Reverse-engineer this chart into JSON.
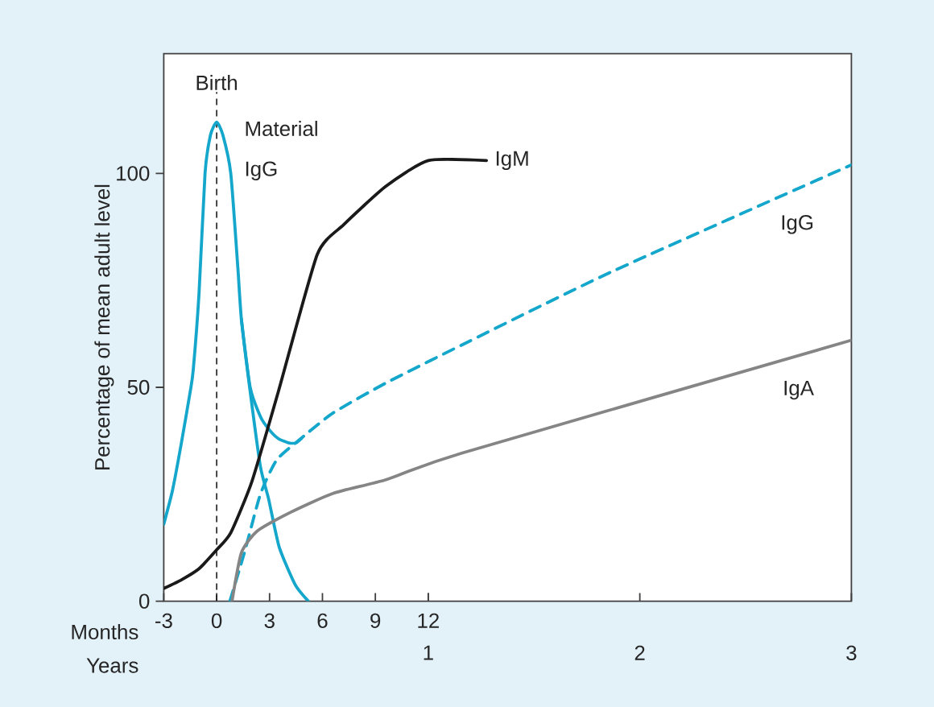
{
  "chart_data": {
    "type": "line",
    "ylabel": "Percentage of mean adult level",
    "xlabel": "Months",
    "x2label": "Years",
    "xlim": [
      -3,
      36
    ],
    "xticks": [
      -3,
      0,
      3,
      6,
      9,
      12
    ],
    "x2lim": [
      -0.25,
      3
    ],
    "x2ticks": [
      1,
      2,
      3
    ],
    "ylim": [
      0,
      128
    ],
    "yticks": [
      0,
      50,
      100
    ],
    "ref_lines": [
      {
        "axis": "x",
        "value": 0,
        "label": "Birth",
        "line_style": "dashed",
        "color": "#1a1a1a"
      }
    ],
    "series": [
      {
        "name": "Material IgG",
        "color": "#14a7cb",
        "line_style": "solid",
        "x": [
          -3,
          -2.5,
          -2,
          -1.5,
          -1.33,
          -1,
          -0.66,
          -0.35,
          0,
          0.35,
          0.8,
          1.2,
          1.4,
          1.87,
          2.48,
          2.94,
          3.55,
          4.46,
          5.2
        ],
        "values": [
          18,
          26,
          37,
          49,
          54,
          72,
          100,
          109,
          112,
          109,
          100,
          78,
          66,
          50,
          31.5,
          24,
          12.6,
          3.8,
          0
        ]
      },
      {
        "color": "#14a7cb",
        "line_style": "solid",
        "x": [
          1.4,
          1.9,
          2.5,
          3,
          3.5,
          4.1,
          4.5,
          4.8
        ],
        "values": [
          66,
          50,
          43,
          40,
          38,
          37,
          37,
          38
        ]
      },
      {
        "name": "IgM",
        "color": "#1a1a1a",
        "line_style": "solid",
        "x": [
          -3,
          -2,
          -1,
          0,
          0.8,
          2,
          3.5,
          5.7,
          7.2,
          9.6,
          12,
          15.3
        ],
        "values": [
          3,
          5,
          7.6,
          12,
          16,
          28,
          49,
          81,
          88,
          97,
          103,
          103
        ]
      },
      {
        "name": "IgG",
        "color": "#14a7cb",
        "line_style": "dashed",
        "x": [
          0.75,
          1.57,
          2.48,
          3.4,
          4.77,
          6.6,
          9.6,
          14.2,
          22.4,
          36
        ],
        "values": [
          0,
          11.3,
          25,
          33,
          38,
          44,
          51,
          60.5,
          77,
          102
        ]
      },
      {
        "name": "IgA",
        "color": "#858585",
        "line_style": "solid",
        "x": [
          0.87,
          1.4,
          2.3,
          4.2,
          6.6,
          9.6,
          13.9,
          36
        ],
        "values": [
          0,
          11.3,
          16.4,
          20.8,
          25.2,
          28.4,
          34.6,
          61
        ]
      }
    ]
  }
}
